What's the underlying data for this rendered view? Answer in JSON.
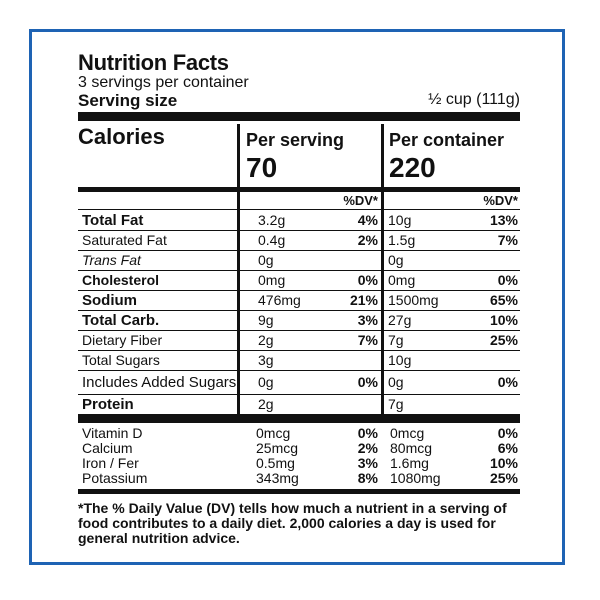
{
  "title": "Nutrition Facts",
  "servings_per_container": "3 servings per container",
  "serving_size": {
    "label": "Serving size",
    "value": "½ cup (111g)"
  },
  "calories": {
    "label": "Calories",
    "per_serving_label": "Per serving",
    "per_serving_value": "70",
    "per_container_label": "Per container",
    "per_container_value": "220"
  },
  "dv_header": "%DV*",
  "nutrients": [
    {
      "name": "Total Fat",
      "ps": "3.2g",
      "ps_dv": "4%",
      "pc": "10g",
      "pc_dv": "13%"
    },
    {
      "name": "Saturated Fat",
      "ps": "0.4g",
      "ps_dv": "2%",
      "pc": "1.5g",
      "pc_dv": "7%"
    },
    {
      "name": "Trans Fat",
      "ps": "0g",
      "ps_dv": "",
      "pc": "0g",
      "pc_dv": ""
    },
    {
      "name": "Cholesterol",
      "ps": "0mg",
      "ps_dv": "0%",
      "pc": "0mg",
      "pc_dv": "0%"
    },
    {
      "name": "Sodium",
      "ps": "476mg",
      "ps_dv": "21%",
      "pc": "1500mg",
      "pc_dv": "65%"
    },
    {
      "name": "Total Carb.",
      "ps": "9g",
      "ps_dv": "3%",
      "pc": "27g",
      "pc_dv": "10%"
    },
    {
      "name": "Dietary Fiber",
      "ps": "2g",
      "ps_dv": "7%",
      "pc": "7g",
      "pc_dv": "25%"
    },
    {
      "name": "Total Sugars",
      "ps": "3g",
      "ps_dv": "",
      "pc": "10g",
      "pc_dv": ""
    },
    {
      "name": "Includes Added Sugars",
      "ps": "0g",
      "ps_dv": "0%",
      "pc": "0g",
      "pc_dv": "0%"
    },
    {
      "name": "Protein",
      "ps": "2g",
      "ps_dv": "",
      "pc": "7g",
      "pc_dv": ""
    }
  ],
  "vitamins": [
    {
      "name": "Vitamin D",
      "ps": "0mcg",
      "ps_dv": "0%",
      "pc": "0mcg",
      "pc_dv": "0%"
    },
    {
      "name": "Calcium",
      "ps": "25mcg",
      "ps_dv": "2%",
      "pc": "80mcg",
      "pc_dv": "6%"
    },
    {
      "name": "Iron / Fer",
      "ps": "0.5mg",
      "ps_dv": "3%",
      "pc": "1.6mg",
      "pc_dv": "10%"
    },
    {
      "name": "Potassium",
      "ps": "343mg",
      "ps_dv": "8%",
      "pc": "1080mg",
      "pc_dv": "25%"
    }
  ],
  "footnote": "*The % Daily Value (DV) tells how much a nutrient in a serving of food contributes to a daily diet. 2,000 calories a day is used for general nutrition advice.",
  "colors": {
    "border": "#1e63b4",
    "text": "#111111"
  }
}
